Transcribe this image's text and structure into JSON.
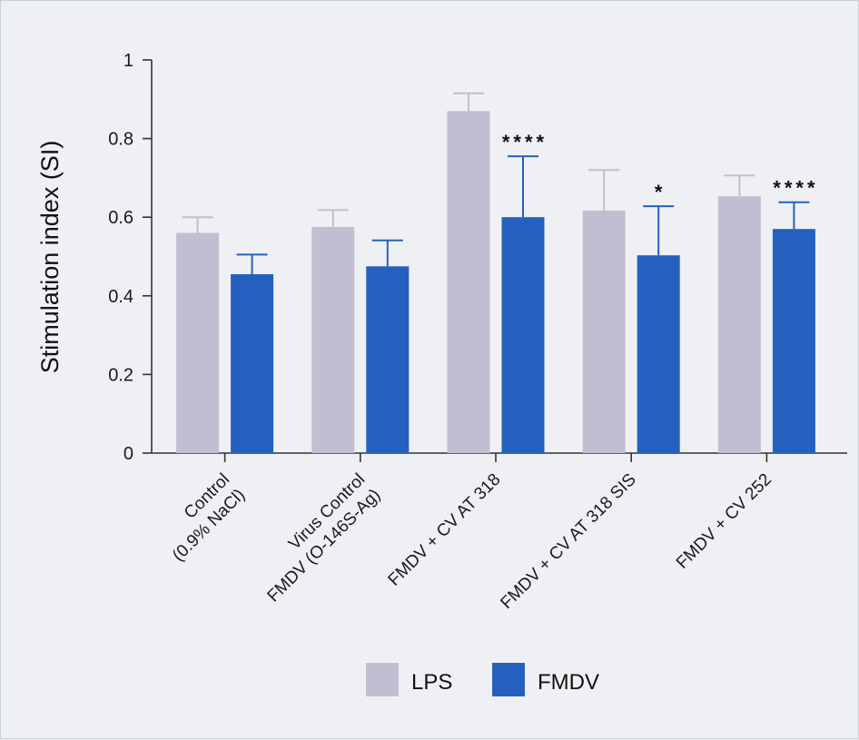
{
  "chart_data": {
    "type": "bar",
    "ylabel": "Stimulation index (SI)",
    "ylim": [
      0,
      1
    ],
    "yticks": [
      {
        "value": 0,
        "label": "0"
      },
      {
        "value": 0.2,
        "label": "0.2"
      },
      {
        "value": 0.4,
        "label": "0.4"
      },
      {
        "value": 0.6,
        "label": "0.6"
      },
      {
        "value": 0.8,
        "label": "0.8"
      },
      {
        "value": 1,
        "label": "1"
      }
    ],
    "categories": [
      [
        "Control",
        "(0.9% NaCl)"
      ],
      [
        "Virus Control",
        "FMDV (O-146S-Ag)"
      ],
      [
        "FMDV + CV AT 318"
      ],
      [
        "FMDV + CV AT 318 SIS"
      ],
      [
        "FMDV + CV 252"
      ]
    ],
    "series": [
      {
        "name": "LPS",
        "color": "#c0bfd2",
        "errcolor": "#c0bfd2",
        "values": [
          0.56,
          0.575,
          0.87,
          0.617,
          0.653
        ],
        "errors": [
          0.04,
          0.043,
          0.045,
          0.103,
          0.053
        ],
        "significance": [
          "",
          "",
          "",
          "",
          ""
        ]
      },
      {
        "name": "FMDV",
        "color": "#2660be",
        "errcolor": "#2660be",
        "values": [
          0.455,
          0.475,
          0.6,
          0.503,
          0.57
        ],
        "errors": [
          0.05,
          0.066,
          0.155,
          0.125,
          0.068
        ],
        "significance": [
          "",
          "",
          "****",
          "*",
          "****"
        ]
      }
    ],
    "legend_position": "bottom-center",
    "grid": false
  }
}
